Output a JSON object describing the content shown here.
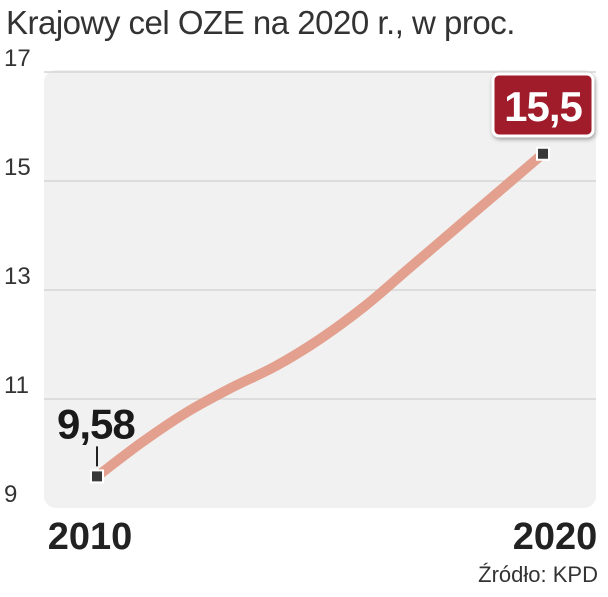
{
  "chart_data": {
    "type": "line",
    "title": "Krajowy cel OZE na 2020 r., w proc.",
    "x": [
      2010,
      2011,
      2012,
      2013,
      2014,
      2015,
      2016,
      2017,
      2018,
      2019,
      2020
    ],
    "values": [
      9.58,
      10.2,
      10.75,
      11.2,
      11.6,
      12.1,
      12.7,
      13.4,
      14.1,
      14.8,
      15.5
    ],
    "x_tick_labels": [
      "2010",
      "2020"
    ],
    "y_ticks": [
      "9",
      "11",
      "13",
      "15",
      "17"
    ],
    "ylim": [
      9,
      17
    ],
    "xlim": [
      2010,
      2020
    ],
    "annotations": [
      {
        "label": "9,58",
        "x": 2010,
        "value": 9.58
      },
      {
        "label": "15,5",
        "x": 2020,
        "value": 15.5
      }
    ],
    "grid": true,
    "colors": {
      "line": "#e3a08e",
      "plot_bg": "#f1f1f1",
      "grid": "#d6d6d6",
      "end_badge": "#a01c2c"
    }
  },
  "source": "Źródło: KPD"
}
